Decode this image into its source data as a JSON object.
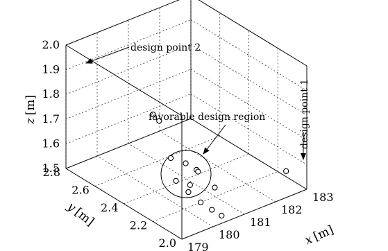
{
  "chart_data": {
    "type": "scatter",
    "axes": {
      "x": {
        "ticks": [
          "179",
          "180",
          "181",
          "182",
          "183"
        ],
        "range": [
          179,
          183
        ]
      },
      "y": {
        "ticks": [
          "2.0",
          "2.2",
          "2.4",
          "2.6",
          "2.8"
        ],
        "range": [
          2.0,
          2.8
        ]
      },
      "z": {
        "ticks": [
          "1.5",
          "1.6",
          "1.7",
          "1.8",
          "1.9",
          "2.0"
        ],
        "range": [
          1.5,
          2.0
        ]
      }
    },
    "labels": {
      "x_var": "x",
      "x_unit": "[m]",
      "y_var": "y",
      "y_unit": "[m]",
      "z_var": "z",
      "z_unit": "[m]"
    },
    "grid": true,
    "annotations": {
      "design_point_2": "design point 2",
      "design_point_1": "design point 1",
      "favorable_region": "favorable design region"
    },
    "points": [
      {
        "x": 179.19,
        "y": 2.24,
        "z": 1.91
      },
      {
        "x": 179.34,
        "y": 2.23,
        "z": 1.88
      },
      {
        "x": 179.48,
        "y": 2.18,
        "z": 1.74
      },
      {
        "x": 179.68,
        "y": 2.12,
        "z": 1.73
      },
      {
        "x": 179.84,
        "y": 2.08,
        "z": 1.71
      },
      {
        "x": 179.89,
        "y": 2.08,
        "z": 1.7
      },
      {
        "x": 180.1,
        "y": 2.01,
        "z": 1.65
      },
      {
        "x": 180.11,
        "y": 2.28,
        "z": 1.58
      },
      {
        "x": 180.33,
        "y": 2.23,
        "z": 1.57
      },
      {
        "x": 180.23,
        "y": 2.22,
        "z": 1.55
      },
      {
        "x": 180.53,
        "y": 2.2,
        "z": 1.5
      },
      {
        "x": 180.75,
        "y": 2.17,
        "z": 1.47
      },
      {
        "x": 180.83,
        "y": 2.12,
        "z": 1.46
      },
      {
        "x": 182.94,
        "y": 2.13,
        "z": 1.53
      }
    ]
  }
}
